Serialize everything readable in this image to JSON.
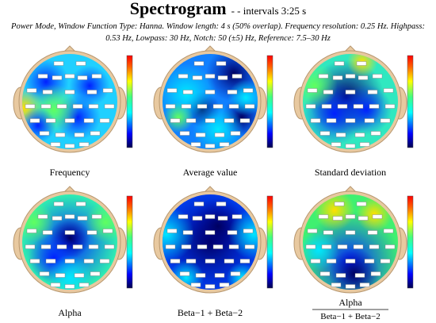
{
  "header": {
    "title": "Spectrogram",
    "subtitle": "- - intervals 3:25 s",
    "description": [
      "Power Mode, Window Function Type: Hanna. Window length: 4 s (50% overlap). Frequency resolution: 0.25 Hz. Highpass:",
      "0.53 Hz, Lowpass: 30 Hz, Notch: 50 (±5) Hz, Reference: 7.5–30 Hz"
    ]
  },
  "panels": [
    {
      "label": "Frequency"
    },
    {
      "label": "Average value"
    },
    {
      "label": "Standard deviation"
    },
    {
      "label": "Alpha"
    },
    {
      "label": "Beta−1 + Beta−2"
    },
    {
      "label": {
        "numerator": "Alpha",
        "denominator": "Beta−1 + Beta−2"
      }
    }
  ]
}
